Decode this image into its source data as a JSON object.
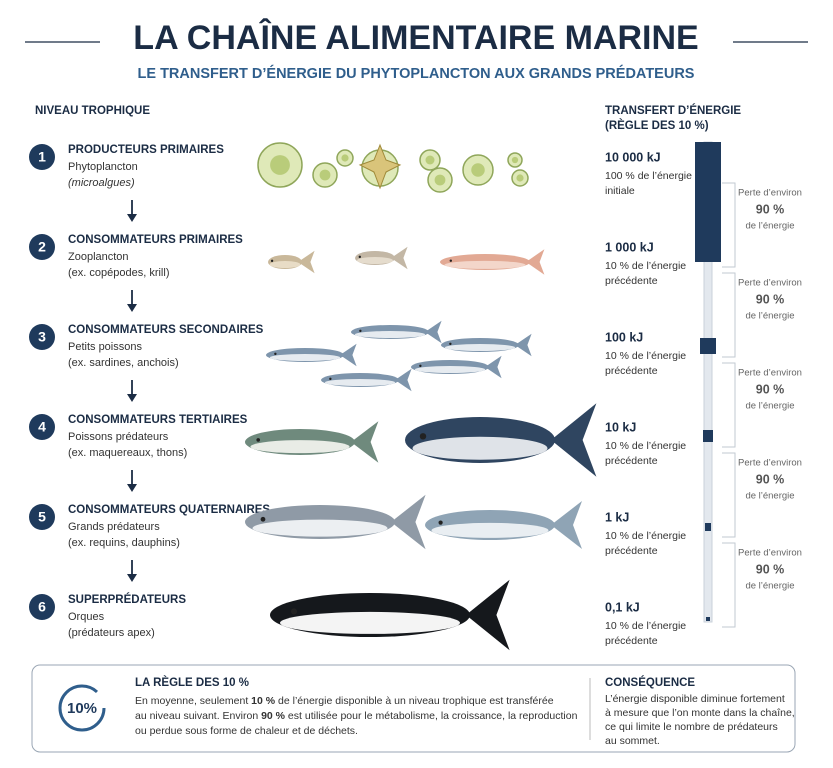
{
  "header": {
    "title": "LA CHAÎNE ALIMENTAIRE MARINE",
    "subtitle": "LE TRANSFERT D’ÉNERGIE DU PHYTOPLANCTON AUX GRANDS PRÉDATEURS"
  },
  "levels_heading": "NIVEAU TROPHIQUE",
  "energy_heading": [
    "TRANSFERT D’ÉNERGIE",
    "(RÈGLE DES 10 %)"
  ],
  "levels": [
    {
      "number": 1,
      "title": "PRODUCTEURS PRIMAIRES",
      "lines": [
        "Phytoplancton",
        "(microalgues)"
      ],
      "energy": "10 000 kJ",
      "energy_note": [
        "100 % de l’énergie",
        "initiale"
      ]
    },
    {
      "number": 2,
      "title": "CONSOMMATEURS PRIMAIRES",
      "lines": [
        "Zooplancton",
        "(ex. copépodes, krill)"
      ],
      "energy": "1 000 kJ",
      "energy_note": [
        "10 % de l’énergie",
        "précédente"
      ]
    },
    {
      "number": 3,
      "title": "CONSOMMATEURS SECONDAIRES",
      "lines": [
        "Petits poissons",
        "(ex. sardines, anchois)"
      ],
      "energy": "100 kJ",
      "energy_note": [
        "10 % de l’énergie",
        "précédente"
      ]
    },
    {
      "number": 4,
      "title": "CONSOMMATEURS TERTIAIRES",
      "lines": [
        "Poissons prédateurs",
        "(ex. maquereaux, thons)"
      ],
      "energy": "10 kJ",
      "energy_note": [
        "10 % de l’énergie",
        "précédente"
      ]
    },
    {
      "number": 5,
      "title": "CONSOMMATEURS QUATERNAIRES",
      "lines": [
        "Grands prédateurs",
        "(ex. requins, dauphins)"
      ],
      "energy": "1 kJ",
      "energy_note": [
        "10 % de l’énergie",
        "précédente"
      ]
    },
    {
      "number": 6,
      "title": "SUPERPRÉDATEURS",
      "lines": [
        "Orques",
        "(prédateurs apex)"
      ],
      "energy": "0,1 kJ",
      "energy_note": [
        "10 % de l’énergie",
        "précédente"
      ]
    }
  ],
  "losses": [
    [
      "Perte d’environ",
      "90 %",
      "de l’énergie"
    ],
    [
      "Perte d’environ",
      "90 %",
      "de l’énergie"
    ],
    [
      "Perte d’environ",
      "90 %",
      "de l’énergie"
    ],
    [
      "Perte d’environ",
      "90 %",
      "de l’énergie"
    ],
    [
      "Perte d’environ",
      "90 %",
      "de l’énergie"
    ]
  ],
  "rule": {
    "icon": "10%",
    "title": "LA RÈGLE DES 10 %",
    "lines": [
      [
        "En moyenne, seulement ",
        "10 %",
        " de l’énergie disponible à un niveau trophique est transférée"
      ],
      [
        "au niveau suivant. Environ ",
        "90 %",
        " est utilisée pour le métabolisme, la croissance, la reproduction"
      ],
      [
        "ou perdue sous forme de chaleur et de déchets."
      ]
    ]
  },
  "consequence": {
    "title": "CONSÉQUENCE",
    "lines": [
      "L’énergie disponible diminue fortement",
      "à mesure que l’on monte dans la chaîne,",
      "ce qui limite le nombre de prédateurs",
      "au sommet."
    ]
  }
}
